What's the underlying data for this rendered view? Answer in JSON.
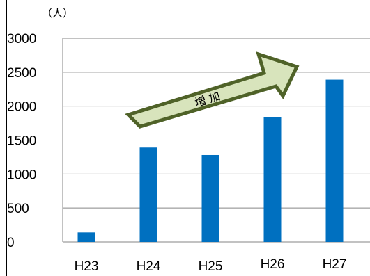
{
  "chart_data": {
    "type": "bar",
    "categories": [
      "H23",
      "H24",
      "H25",
      "H26",
      "H27"
    ],
    "values": [
      140,
      1390,
      1280,
      1840,
      2390
    ],
    "ylim": [
      0,
      3000
    ],
    "yticks": [
      0,
      500,
      1000,
      1500,
      2000,
      2500,
      3000
    ],
    "ylabel": "（人）",
    "xlabel": "",
    "title": "",
    "grid": true,
    "bar_color": "#0070C0",
    "annotation": {
      "text": "増 加",
      "shape": "arrow",
      "from_category": "H24",
      "to_category": "H27",
      "fill_color": "#D8E4BC",
      "stroke_color": "#4F6228"
    }
  }
}
